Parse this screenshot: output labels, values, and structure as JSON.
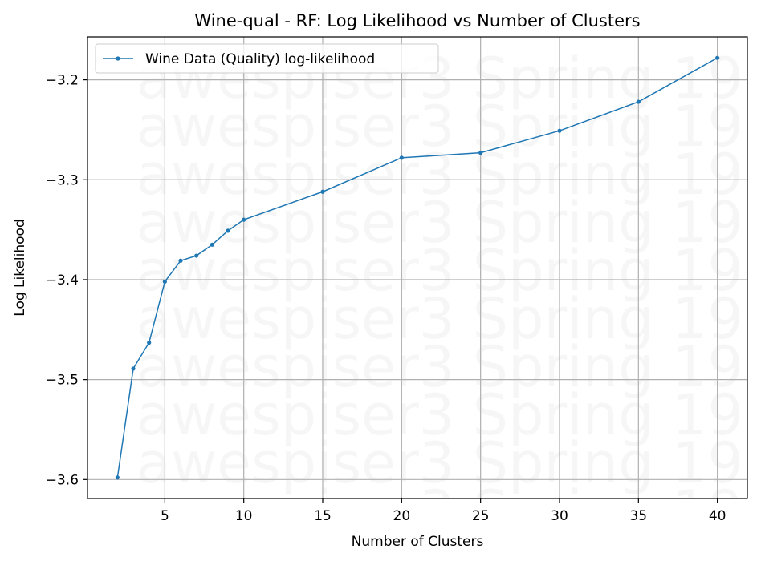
{
  "chart_data": {
    "type": "line",
    "title": "Wine-qual - RF: Log Likelihood vs Number of Clusters",
    "xlabel": "Number of Clusters",
    "ylabel": "Log Likelihood",
    "x": [
      2,
      3,
      4,
      5,
      6,
      7,
      8,
      9,
      10,
      15,
      20,
      25,
      30,
      35,
      40
    ],
    "series": [
      {
        "name": "Wine Data (Quality) log-likelihood",
        "values": [
          -3.598,
          -3.489,
          -3.463,
          -3.402,
          -3.381,
          -3.376,
          -3.365,
          -3.351,
          -3.34,
          -3.312,
          -3.278,
          -3.273,
          -3.251,
          -3.222,
          -3.178
        ],
        "color": "#1f77b4"
      }
    ],
    "xticks": [
      5,
      10,
      15,
      20,
      25,
      30,
      35,
      40
    ],
    "xtick_labels": [
      "5",
      "10",
      "15",
      "20",
      "25",
      "30",
      "35",
      "40"
    ],
    "yticks": [
      -3.6,
      -3.5,
      -3.4,
      -3.3,
      -3.2
    ],
    "ytick_labels": [
      "−3.6",
      "−3.5",
      "−3.4",
      "−3.3",
      "−3.2"
    ],
    "xlim": [
      0.1,
      41.9
    ],
    "ylim": [
      -3.619,
      -3.157
    ],
    "grid": true,
    "legend_position": "upper-left",
    "watermark": "awespiser3 Spring 19"
  }
}
